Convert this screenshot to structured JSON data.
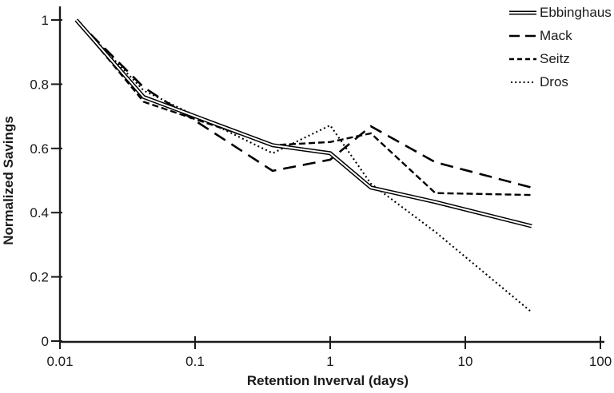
{
  "chart_data": {
    "type": "line",
    "title": "",
    "xlabel": "Retention Inverval (days)",
    "ylabel": "Normalized Savings",
    "x_scale": "log10",
    "xlim": [
      0.01,
      100
    ],
    "ylim": [
      0,
      1
    ],
    "x_ticks": [
      0.01,
      0.1,
      1,
      10,
      100
    ],
    "x_tick_labels": [
      "0.01",
      "0.1",
      "1",
      "10",
      "100"
    ],
    "y_ticks": [
      0,
      0.2,
      0.4,
      0.6,
      0.8,
      1
    ],
    "y_tick_labels": [
      "0",
      "0.2",
      "0.4",
      "0.6",
      "0.8",
      "1"
    ],
    "grid": false,
    "legend_position": "top-right",
    "line_color": "#000000",
    "background_color": "#ffffff",
    "x_days": [
      0.0132,
      0.0417,
      0.375,
      1,
      2,
      6,
      31
    ],
    "series": [
      {
        "name": "Ebbinghaus",
        "line_style": "double-solid",
        "values": [
          1.0,
          0.76,
          0.61,
          0.585,
          0.478,
          0.433,
          0.358
        ]
      },
      {
        "name": "Mack",
        "line_style": "long-dash",
        "values": [
          1.0,
          0.79,
          0.53,
          0.565,
          0.669,
          0.557,
          0.478
        ]
      },
      {
        "name": "Seitz",
        "line_style": "dash",
        "values": [
          1.0,
          0.745,
          0.61,
          0.62,
          0.647,
          0.461,
          0.455
        ]
      },
      {
        "name": "Dros",
        "line_style": "dot",
        "values": [
          1.0,
          0.78,
          0.585,
          0.672,
          0.49,
          0.34,
          0.09
        ]
      }
    ]
  }
}
